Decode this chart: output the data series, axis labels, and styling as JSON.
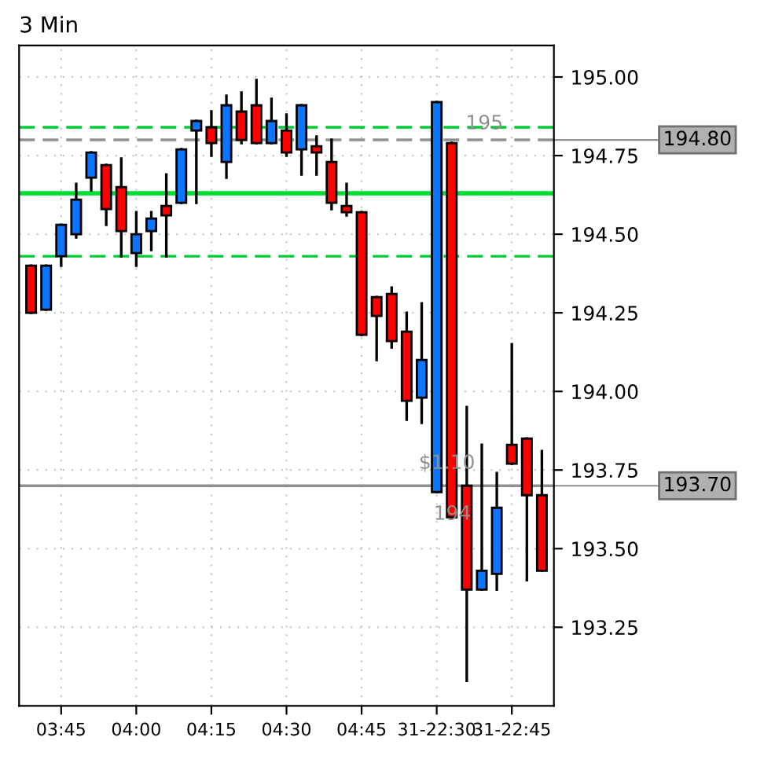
{
  "chart_data": {
    "type": "candlestick",
    "title": "3 Min",
    "categories": [
      null,
      null,
      "03:45",
      null,
      null,
      null,
      null,
      "04:00",
      null,
      null,
      null,
      null,
      "04:15",
      null,
      null,
      null,
      null,
      "04:30",
      null,
      null,
      null,
      null,
      "04:45",
      null,
      null,
      null,
      null,
      "31-22:30",
      null,
      null,
      null,
      null,
      "31-22:45",
      null,
      null
    ],
    "ohlc": [
      [
        194.4,
        194.4,
        194.25,
        194.25
      ],
      [
        194.26,
        194.4,
        194.26,
        194.4
      ],
      [
        194.43,
        194.53,
        194.4,
        194.53
      ],
      [
        194.5,
        194.66,
        194.49,
        194.61
      ],
      [
        194.68,
        194.76,
        194.64,
        194.76
      ],
      [
        194.72,
        194.72,
        194.53,
        194.58
      ],
      [
        194.65,
        194.74,
        194.43,
        194.51
      ],
      [
        194.44,
        194.57,
        194.4,
        194.5
      ],
      [
        194.51,
        194.57,
        194.45,
        194.55
      ],
      [
        194.59,
        194.69,
        194.43,
        194.56
      ],
      [
        194.6,
        194.77,
        194.6,
        194.77
      ],
      [
        194.83,
        194.86,
        194.6,
        194.86
      ],
      [
        194.84,
        194.89,
        194.75,
        194.79
      ],
      [
        194.73,
        194.94,
        194.68,
        194.91
      ],
      [
        194.89,
        194.95,
        194.79,
        194.8
      ],
      [
        194.91,
        194.99,
        194.79,
        194.79
      ],
      [
        194.79,
        194.93,
        194.79,
        194.86
      ],
      [
        194.83,
        194.88,
        194.75,
        194.76
      ],
      [
        194.77,
        194.91,
        194.69,
        194.91
      ],
      [
        194.78,
        194.81,
        194.69,
        194.76
      ],
      [
        194.73,
        194.8,
        194.58,
        194.6
      ],
      [
        194.59,
        194.66,
        194.56,
        194.57
      ],
      [
        194.57,
        194.57,
        194.18,
        194.18
      ],
      [
        194.3,
        194.3,
        194.1,
        194.24
      ],
      [
        194.31,
        194.33,
        194.14,
        194.16
      ],
      [
        194.19,
        194.25,
        193.91,
        193.97
      ],
      [
        193.98,
        194.28,
        193.9,
        194.1
      ],
      [
        193.68,
        194.92,
        193.68,
        194.92
      ],
      [
        194.79,
        194.79,
        193.6,
        193.6
      ],
      [
        193.7,
        193.95,
        193.08,
        193.37
      ],
      [
        193.37,
        193.83,
        193.37,
        193.43
      ],
      [
        193.42,
        193.74,
        193.37,
        193.63
      ],
      [
        193.83,
        194.15,
        193.77,
        193.77
      ],
      [
        193.85,
        193.85,
        193.4,
        193.67
      ],
      [
        193.67,
        193.81,
        193.43,
        193.43
      ]
    ],
    "colors": [
      "#ff0000",
      "#0a75ff",
      "#0a75ff",
      "#0a75ff",
      "#0a75ff",
      "#ff0000",
      "#ff0000",
      "#0a75ff",
      "#0a75ff",
      "#ff0000",
      "#0a75ff",
      "#0a75ff",
      "#ff0000",
      "#0a75ff",
      "#ff0000",
      "#ff0000",
      "#0a75ff",
      "#ff0000",
      "#0a75ff",
      "#ff0000",
      "#ff0000",
      "#ff0000",
      "#ff0000",
      "#ff0000",
      "#ff0000",
      "#ff0000",
      "#0a75ff",
      "#0a75ff",
      "#ff0000",
      "#ff0000",
      "#0a75ff",
      "#0a75ff",
      "#ff0000",
      "#ff0000",
      "#ff0000"
    ],
    "ylim": [
      193.0,
      195.1
    ],
    "yticks": [
      193.25,
      {
        "value": 193.5,
        "label": "193.50"
      },
      193.75,
      {
        "value": 194.0,
        "label": "194.00"
      },
      194.25,
      {
        "value": 194.5,
        "label": "194.50"
      },
      194.75,
      {
        "value": 195.0,
        "label": "195.00"
      }
    ],
    "grid": true,
    "ref_lines": [
      {
        "axis": "y",
        "value": 194.84,
        "color": "#00cc33",
        "line_style": "dashed"
      },
      {
        "axis": "y",
        "value": 194.63,
        "color": "#00dd33",
        "line_style": "solid"
      },
      {
        "axis": "y",
        "value": 194.43,
        "color": "#00cc33",
        "line_style": "dashed"
      },
      {
        "axis": "y",
        "value": 194.8,
        "label": "194.80",
        "color": "#909090",
        "line_style": "dashed"
      },
      {
        "axis": "y",
        "value": 193.7,
        "label": "193.70",
        "color": "#909090",
        "line_style": "solid"
      }
    ],
    "annotations": [
      {
        "text": "195",
        "y": 194.8
      },
      {
        "text": "$1.10",
        "y": 193.72
      },
      {
        "text": "194",
        "y": 193.66
      }
    ]
  }
}
